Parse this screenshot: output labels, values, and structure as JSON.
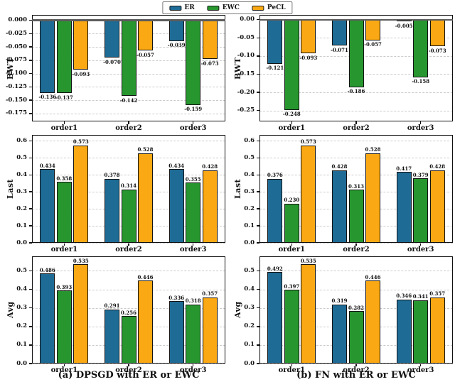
{
  "figure": {
    "legend": {
      "items": [
        {
          "label": "ER",
          "color": "#1e6b96"
        },
        {
          "label": "EWC",
          "color": "#27962f"
        },
        {
          "label": "PeCL",
          "color": "#faa813"
        }
      ]
    },
    "captions": {
      "a": "(a) DPSGD with ER or EWC",
      "b": "(b) FN with ER or EWC"
    },
    "colors": {
      "bar_edge": "#141414",
      "grid": "#cbcbcb",
      "zero_line": "#5c5c5c"
    }
  },
  "chart_data": [
    {
      "id": "bwt-dpsgd",
      "type": "bar",
      "panel": "a",
      "ylabel": "BWT",
      "categories": [
        "order1",
        "order2",
        "order3"
      ],
      "series": [
        {
          "name": "ER",
          "values": [
            -0.136,
            -0.07,
            -0.039
          ]
        },
        {
          "name": "EWC",
          "values": [
            -0.137,
            -0.142,
            -0.159
          ]
        },
        {
          "name": "PeCL",
          "values": [
            -0.093,
            -0.057,
            -0.073
          ]
        }
      ],
      "ticks": [
        0.0,
        -0.025,
        -0.05,
        -0.075,
        -0.1,
        -0.125,
        -0.15,
        -0.175
      ],
      "tick_decimals": 3,
      "ylim": [
        -0.19,
        0.01
      ],
      "zero_line": true,
      "grid": "dashed-horizontal"
    },
    {
      "id": "bwt-fn",
      "type": "bar",
      "panel": "b",
      "ylabel": "BWT",
      "categories": [
        "order1",
        "order2",
        "order3"
      ],
      "series": [
        {
          "name": "ER",
          "values": [
            -0.121,
            -0.071,
            -0.005
          ]
        },
        {
          "name": "EWC",
          "values": [
            -0.248,
            -0.186,
            -0.158
          ]
        },
        {
          "name": "PeCL",
          "values": [
            -0.093,
            -0.057,
            -0.073
          ]
        }
      ],
      "ticks": [
        0.0,
        -0.05,
        -0.1,
        -0.15,
        -0.2,
        -0.25
      ],
      "tick_decimals": 2,
      "ylim": [
        -0.28,
        0.013
      ],
      "zero_line": true,
      "grid": "dashed-horizontal"
    },
    {
      "id": "last-dpsgd",
      "type": "bar",
      "panel": "a",
      "ylabel": "Last",
      "categories": [
        "order1",
        "order2",
        "order3"
      ],
      "series": [
        {
          "name": "ER",
          "values": [
            0.434,
            0.378,
            0.434
          ]
        },
        {
          "name": "EWC",
          "values": [
            0.358,
            0.314,
            0.355
          ]
        },
        {
          "name": "PeCL",
          "values": [
            0.573,
            0.528,
            0.428
          ]
        }
      ],
      "ticks": [
        0.6,
        0.5,
        0.4,
        0.3,
        0.2,
        0.1,
        0.0
      ],
      "tick_decimals": 1,
      "ylim": [
        0,
        0.635
      ],
      "zero_line": false,
      "grid": "dashed-horizontal"
    },
    {
      "id": "last-fn",
      "type": "bar",
      "panel": "b",
      "ylabel": "Last",
      "categories": [
        "order1",
        "order2",
        "order3"
      ],
      "series": [
        {
          "name": "ER",
          "values": [
            0.376,
            0.428,
            0.417
          ]
        },
        {
          "name": "EWC",
          "values": [
            0.23,
            0.313,
            0.379
          ]
        },
        {
          "name": "PeCL",
          "values": [
            0.573,
            0.528,
            0.428
          ]
        }
      ],
      "ticks": [
        0.6,
        0.5,
        0.4,
        0.3,
        0.2,
        0.1,
        0.0
      ],
      "tick_decimals": 1,
      "ylim": [
        0,
        0.635
      ],
      "zero_line": false,
      "grid": "dashed-horizontal"
    },
    {
      "id": "avg-dpsgd",
      "type": "bar",
      "panel": "a",
      "ylabel": "Avg",
      "categories": [
        "order1",
        "order2",
        "order3"
      ],
      "series": [
        {
          "name": "ER",
          "values": [
            0.486,
            0.291,
            0.336
          ]
        },
        {
          "name": "EWC",
          "values": [
            0.393,
            0.256,
            0.318
          ]
        },
        {
          "name": "PeCL",
          "values": [
            0.535,
            0.446,
            0.357
          ]
        }
      ],
      "ticks": [
        0.5,
        0.4,
        0.3,
        0.2,
        0.1,
        0.0
      ],
      "tick_decimals": 1,
      "ylim": [
        0,
        0.578
      ],
      "zero_line": false,
      "grid": "dashed-horizontal"
    },
    {
      "id": "avg-fn",
      "type": "bar",
      "panel": "b",
      "ylabel": "Avg",
      "categories": [
        "order1",
        "order2",
        "order3"
      ],
      "series": [
        {
          "name": "ER",
          "values": [
            0.492,
            0.319,
            0.346
          ]
        },
        {
          "name": "EWC",
          "values": [
            0.397,
            0.282,
            0.341
          ]
        },
        {
          "name": "PeCL",
          "values": [
            0.535,
            0.446,
            0.357
          ]
        }
      ],
      "ticks": [
        0.5,
        0.4,
        0.3,
        0.2,
        0.1,
        0.0
      ],
      "tick_decimals": 1,
      "ylim": [
        0,
        0.578
      ],
      "zero_line": false,
      "grid": "dashed-horizontal"
    }
  ]
}
